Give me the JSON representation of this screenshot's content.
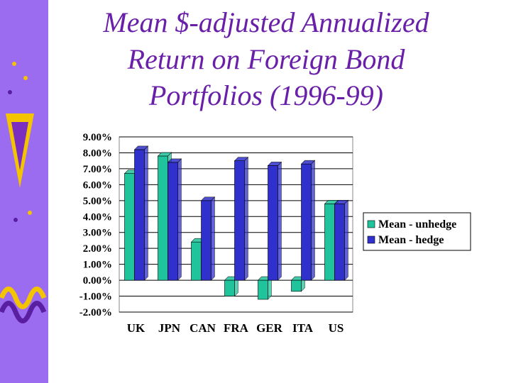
{
  "chart_data": {
    "type": "bar",
    "title_lines": [
      "Mean $-adjusted Annualized",
      "Return on Foreign Bond",
      "Portfolios (1996-99)"
    ],
    "categories": [
      "UK",
      "JPN",
      "CAN",
      "FRA",
      "GER",
      "ITA",
      "US"
    ],
    "series": [
      {
        "name": "Mean - unhedge",
        "color": "#1fc49c",
        "values": [
          6.7,
          7.8,
          2.4,
          -1.0,
          -1.2,
          -0.7,
          4.8
        ]
      },
      {
        "name": "Mean - hedge",
        "color": "#3030cc",
        "values": [
          8.2,
          7.4,
          5.0,
          7.5,
          7.2,
          7.3,
          4.8
        ]
      }
    ],
    "ylim": [
      -2,
      9
    ],
    "yticks": [
      {
        "value": 9,
        "label": "9.00%"
      },
      {
        "value": 8,
        "label": "8.00%"
      },
      {
        "value": 7,
        "label": "7.00%"
      },
      {
        "value": 6,
        "label": "6.00%"
      },
      {
        "value": 5,
        "label": "5.00%"
      },
      {
        "value": 4,
        "label": "4.00%"
      },
      {
        "value": 3,
        "label": "3.00%"
      },
      {
        "value": 2,
        "label": "2.00%"
      },
      {
        "value": 1,
        "label": "1.00%"
      },
      {
        "value": 0,
        "label": "0.00%"
      },
      {
        "value": -1,
        "label": "-1.00%"
      },
      {
        "value": -2,
        "label": "-2.00%"
      }
    ],
    "grid": true
  }
}
